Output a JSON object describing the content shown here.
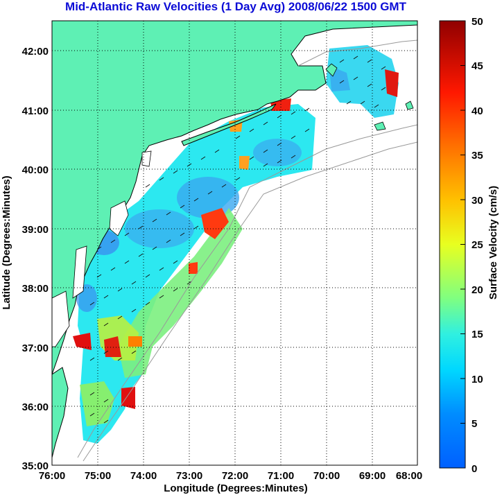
{
  "title": "Mid-Atlantic Raw Velocities (1 Day Avg) 2008/06/22 1500 GMT",
  "map": {
    "x_label": "Longitude (Degrees:Minutes)",
    "y_label": "Latitude (Degrees:Minutes)",
    "lon_range": [
      -76,
      -68
    ],
    "lat_range": [
      35,
      42.5
    ],
    "x_ticks": [
      "76:00",
      "75:00",
      "74:00",
      "73:00",
      "72:00",
      "71:00",
      "70:00",
      "69:00",
      "68:00"
    ],
    "y_ticks": [
      "35:00",
      "36:00",
      "37:00",
      "38:00",
      "39:00",
      "40:00",
      "41:00",
      "42:00"
    ],
    "land_color": "#5ef0b4",
    "grid": "dotted"
  },
  "colorbar": {
    "label": "Surface Velocity (cm/s)",
    "ticks": [
      "0",
      "5",
      "10",
      "15",
      "20",
      "25",
      "30",
      "35",
      "40",
      "45",
      "50"
    ],
    "range": [
      0,
      50
    ]
  }
}
